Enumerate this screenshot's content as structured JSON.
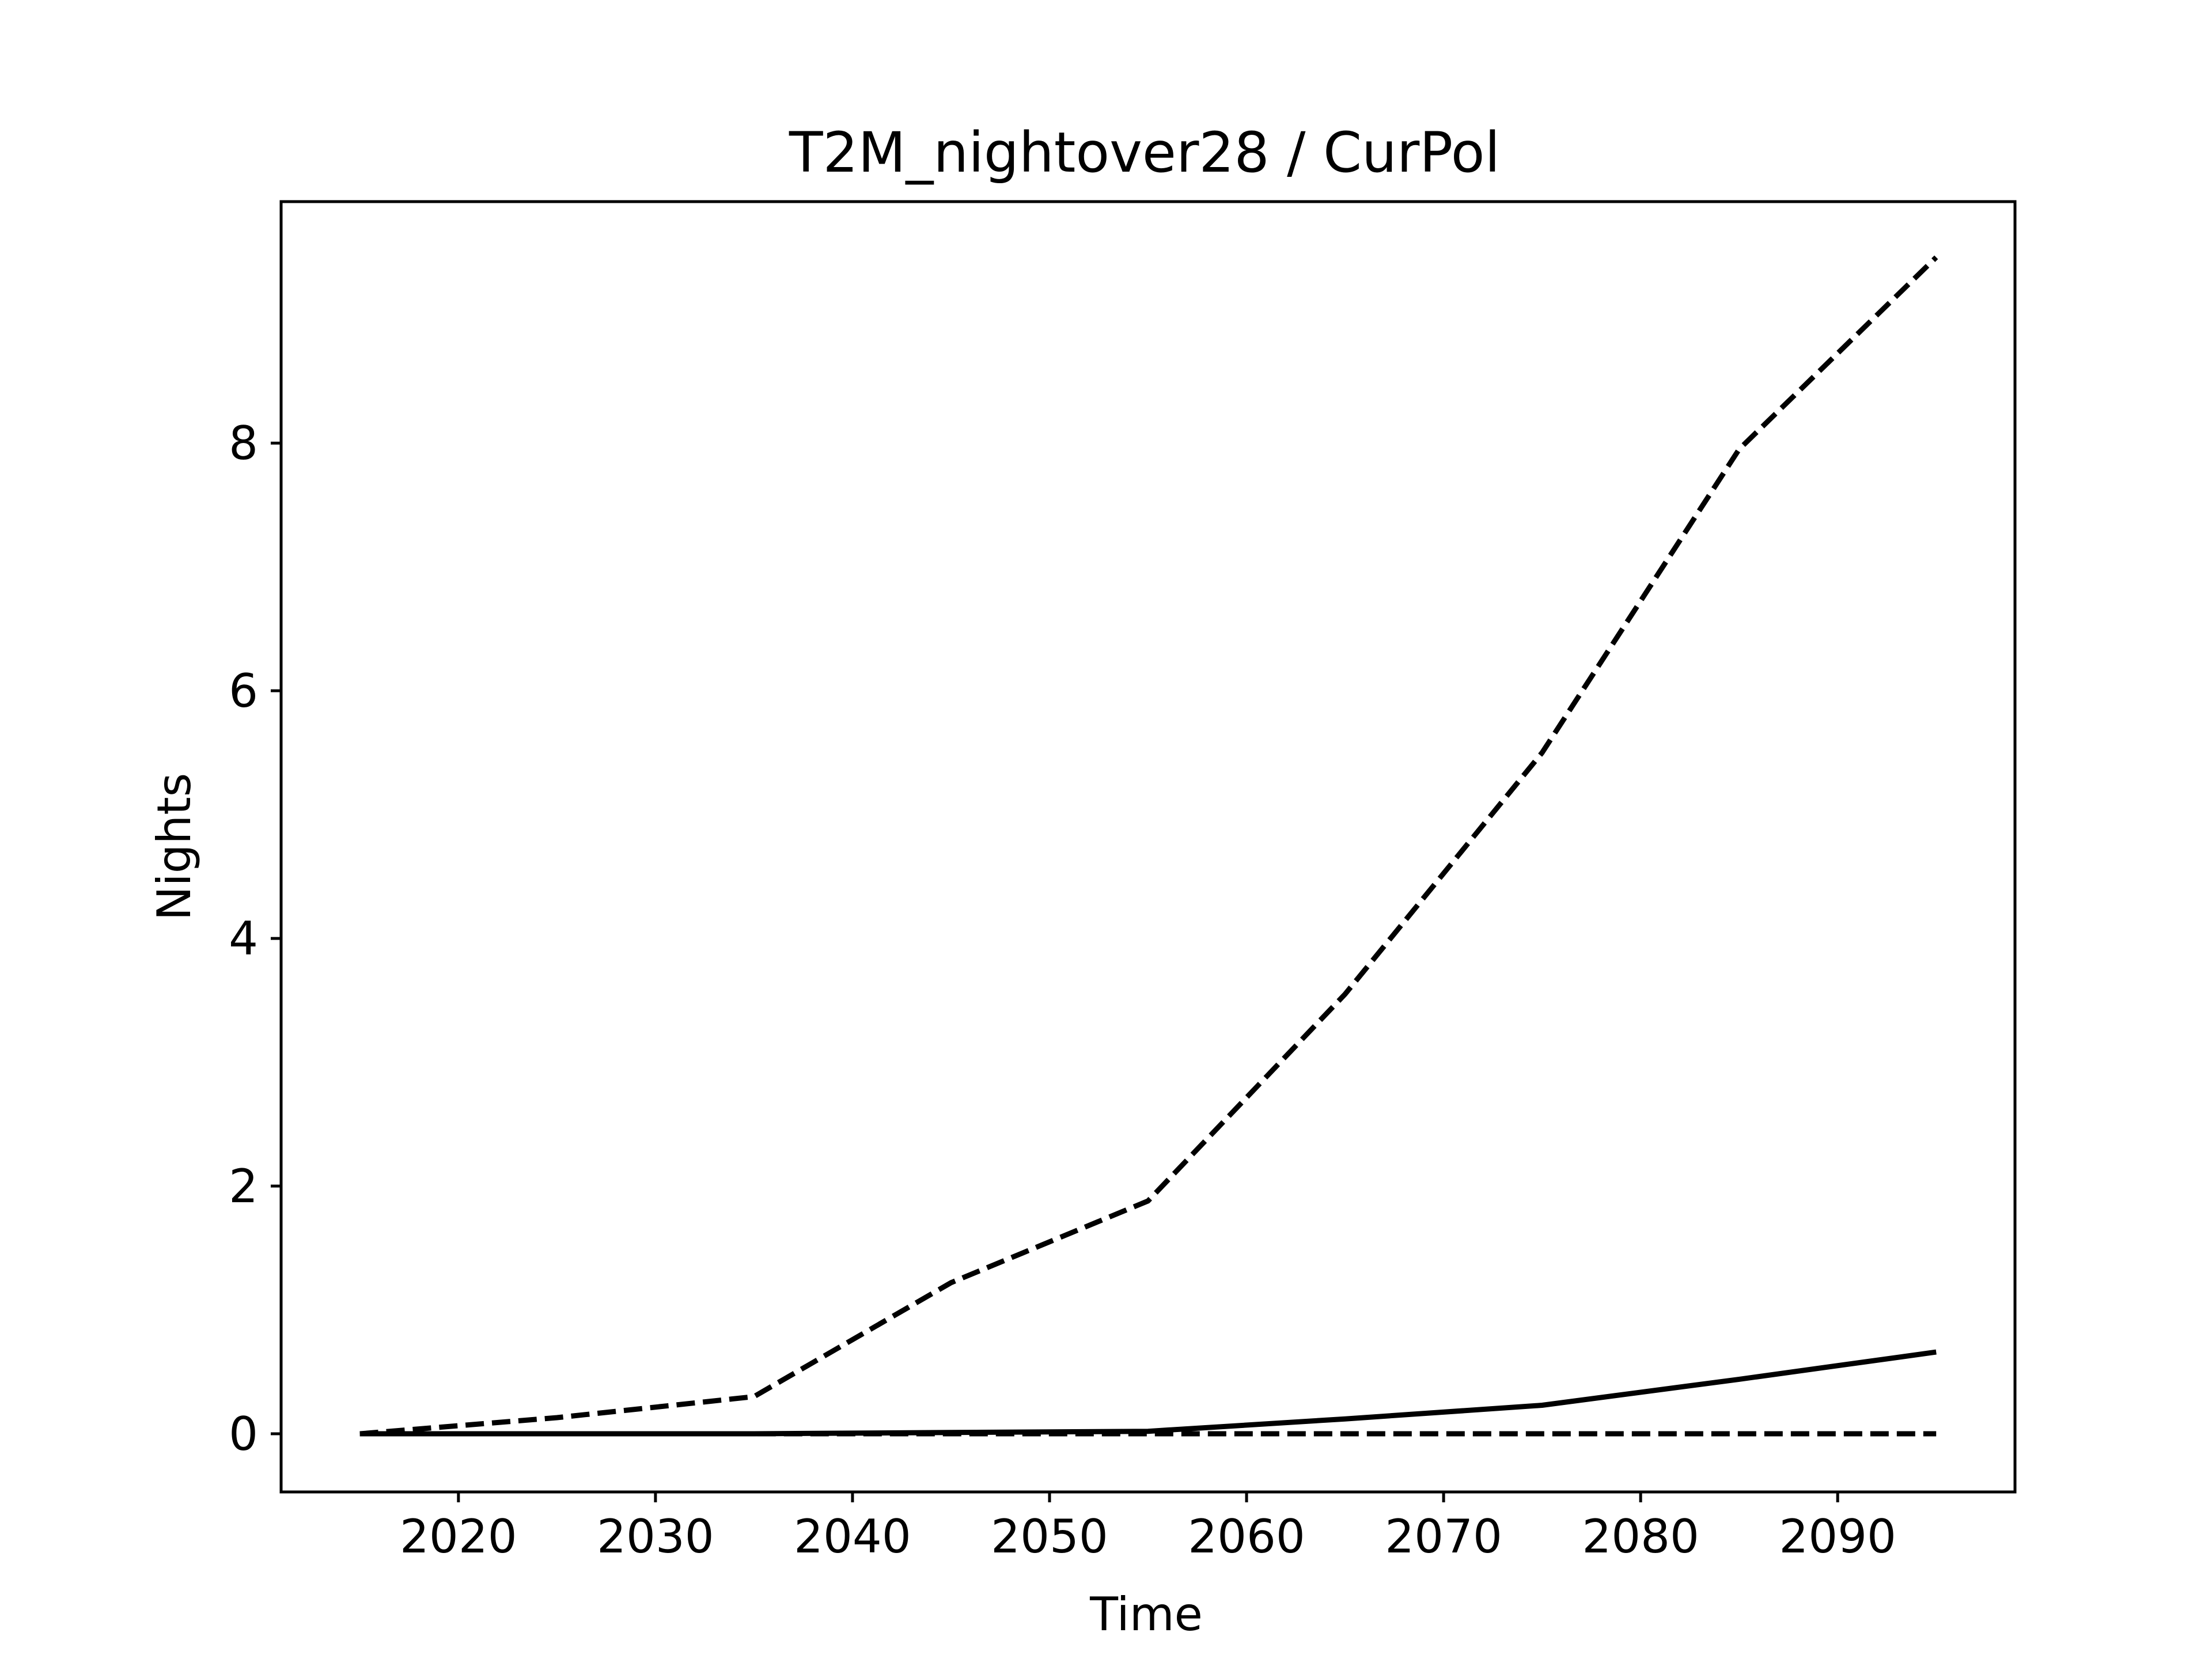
{
  "chart_data": {
    "type": "line",
    "title": "T2M_nightover28 / CurPol",
    "xlabel": "Time",
    "ylabel": "Nights",
    "xlim": [
      2011,
      2099
    ],
    "ylim": [
      -0.47,
      9.95
    ],
    "xticks": [
      2020,
      2030,
      2040,
      2050,
      2060,
      2070,
      2080,
      2090
    ],
    "yticks": [
      0,
      2,
      4,
      6,
      8
    ],
    "grid": false,
    "x": [
      2015,
      2025,
      2035,
      2045,
      2055,
      2065,
      2075,
      2085,
      2095
    ],
    "series": [
      {
        "values": [
          0.0,
          0.13,
          0.3,
          1.22,
          1.88,
          3.55,
          5.5,
          7.95,
          9.5
        ],
        "style": "dashed",
        "color": "#000000"
      },
      {
        "values": [
          0.0,
          0.0,
          0.0,
          0.01,
          0.02,
          0.12,
          0.23,
          0.44,
          0.66
        ],
        "style": "solid",
        "color": "#000000"
      },
      {
        "values": [
          0.0,
          0.0,
          0.0,
          0.0,
          0.0,
          0.0,
          0.0,
          0.0,
          0.0
        ],
        "style": "dashed",
        "color": "#000000"
      }
    ]
  }
}
